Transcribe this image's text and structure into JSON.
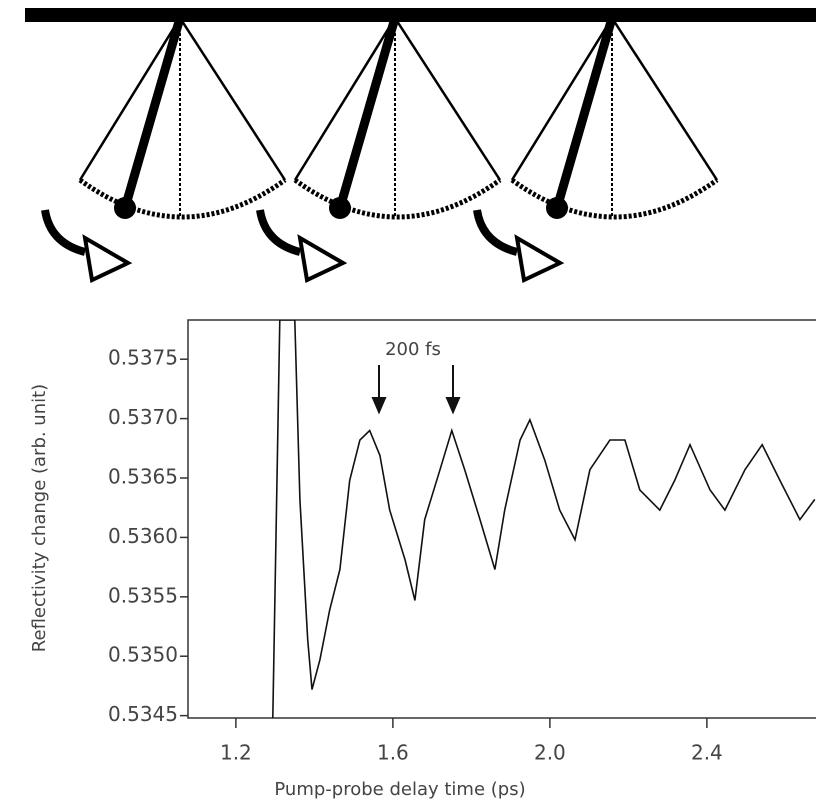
{
  "chart_data": {
    "type": "line",
    "y_label": "Reflectivity change (arb. unit)",
    "x_label": "Pump-probe delay time (ps)",
    "annotation": "200 fs",
    "color": "#111111",
    "x": [
      1.294,
      1.312,
      1.35,
      1.363,
      1.383,
      1.394,
      1.414,
      1.439,
      1.465,
      1.49,
      1.516,
      1.541,
      1.567,
      1.592,
      1.631,
      1.656,
      1.681,
      1.72,
      1.75,
      1.783,
      1.822,
      1.86,
      1.885,
      1.924,
      1.949,
      1.987,
      2.025,
      2.064,
      2.102,
      2.153,
      2.191,
      2.229,
      2.28,
      2.318,
      2.357,
      2.408,
      2.446,
      2.497,
      2.541,
      2.586,
      2.637,
      2.675
    ],
    "values": [
      0.53448,
      0.53783,
      0.53783,
      0.53632,
      0.53514,
      0.53472,
      0.53497,
      0.53539,
      0.53573,
      0.53648,
      0.53682,
      0.5369,
      0.53669,
      0.53623,
      0.53581,
      0.53547,
      0.53615,
      0.53657,
      0.5369,
      0.53657,
      0.53615,
      0.53573,
      0.53623,
      0.53682,
      0.53699,
      0.53665,
      0.53623,
      0.53598,
      0.53657,
      0.53682,
      0.53682,
      0.5364,
      0.53623,
      0.53648,
      0.53678,
      0.5364,
      0.53623,
      0.53657,
      0.53678,
      0.53648,
      0.53615,
      0.53632
    ],
    "xlim": [
      1.078,
      2.678
    ],
    "ylim": [
      0.53448,
      0.53783
    ],
    "xticks": [
      1.2,
      1.6,
      {
        "value": 2,
        "label": "2.0"
      },
      2.4
    ],
    "yticks": [
      0.5345,
      {
        "value": 0.535,
        "label": "0.5350"
      },
      0.5355,
      {
        "value": 0.536,
        "label": "0.5360"
      },
      0.5365,
      {
        "value": 0.537,
        "label": "0.5370"
      },
      0.5375
    ]
  }
}
